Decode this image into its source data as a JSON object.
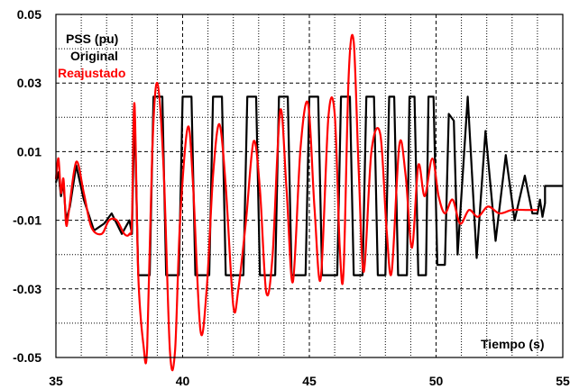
{
  "chart_data": {
    "type": "line",
    "title": "",
    "xlabel": "Tiempo (s)",
    "ylabel": "PSS (pu)",
    "xlim": [
      35,
      55
    ],
    "ylim": [
      -0.05,
      0.05
    ],
    "x_ticks": [
      "35",
      "40",
      "45",
      "50",
      "55"
    ],
    "y_ticks": [
      "0.05",
      "0.03",
      "0.01",
      "-0.01",
      "-0.03",
      "-0.05"
    ],
    "grid": {
      "major": "dashed",
      "minor": "dotted"
    },
    "legend": "top-left",
    "series": [
      {
        "name": "Original",
        "color": "#000000",
        "points": [
          [
            35.0,
            0.001
          ],
          [
            35.1,
            0.004
          ],
          [
            35.2,
            -0.003
          ],
          [
            35.3,
            0.001
          ],
          [
            35.4,
            -0.01
          ],
          [
            35.55,
            -0.006
          ],
          [
            35.8,
            0.006
          ],
          [
            36.1,
            -0.004
          ],
          [
            36.5,
            -0.013
          ],
          [
            36.9,
            -0.011
          ],
          [
            37.2,
            -0.008
          ],
          [
            37.6,
            -0.014
          ],
          [
            37.9,
            -0.01
          ],
          [
            38.0,
            -0.014
          ],
          [
            38.1,
            0.023
          ],
          [
            38.25,
            -0.026
          ],
          [
            38.7,
            -0.026
          ],
          [
            38.85,
            0.026
          ],
          [
            39.2,
            0.026
          ],
          [
            39.35,
            -0.026
          ],
          [
            39.85,
            -0.026
          ],
          [
            40.0,
            0.026
          ],
          [
            40.35,
            0.026
          ],
          [
            40.5,
            -0.026
          ],
          [
            41.05,
            -0.026
          ],
          [
            41.2,
            0.026
          ],
          [
            41.55,
            0.026
          ],
          [
            41.7,
            -0.026
          ],
          [
            42.4,
            -0.026
          ],
          [
            42.55,
            0.026
          ],
          [
            42.9,
            0.026
          ],
          [
            43.05,
            -0.026
          ],
          [
            43.65,
            -0.026
          ],
          [
            43.8,
            0.026
          ],
          [
            44.15,
            0.026
          ],
          [
            44.3,
            -0.026
          ],
          [
            44.85,
            -0.026
          ],
          [
            45.0,
            0.026
          ],
          [
            45.35,
            0.026
          ],
          [
            45.5,
            -0.026
          ],
          [
            46.1,
            -0.026
          ],
          [
            46.25,
            0.026
          ],
          [
            46.6,
            0.026
          ],
          [
            46.75,
            -0.026
          ],
          [
            47.1,
            -0.026
          ],
          [
            47.25,
            0.026
          ],
          [
            47.55,
            0.026
          ],
          [
            47.7,
            -0.026
          ],
          [
            48.0,
            -0.026
          ],
          [
            48.15,
            0.026
          ],
          [
            48.35,
            0.026
          ],
          [
            48.5,
            -0.026
          ],
          [
            48.85,
            -0.026
          ],
          [
            48.95,
            0.026
          ],
          [
            49.15,
            0.026
          ],
          [
            49.3,
            -0.026
          ],
          [
            49.6,
            -0.026
          ],
          [
            49.7,
            0.026
          ],
          [
            49.9,
            0.026
          ],
          [
            50.05,
            -0.023
          ],
          [
            50.35,
            -0.023
          ],
          [
            50.5,
            0.021
          ],
          [
            50.7,
            0.019
          ],
          [
            50.85,
            -0.02
          ],
          [
            51.25,
            0.026
          ],
          [
            51.6,
            -0.021
          ],
          [
            51.95,
            0.016
          ],
          [
            52.35,
            -0.016
          ],
          [
            52.75,
            0.009
          ],
          [
            53.1,
            -0.01
          ],
          [
            53.5,
            0.003
          ],
          [
            53.8,
            -0.008
          ],
          [
            54.0,
            -0.008
          ],
          [
            54.1,
            -0.004
          ],
          [
            54.2,
            -0.009
          ],
          [
            54.3,
            -0.005
          ],
          [
            54.3,
            0.0
          ],
          [
            55.0,
            0.0
          ]
        ]
      },
      {
        "name": "Reajustado",
        "color": "#ff0000",
        "points": [
          [
            35.0,
            0.002
          ],
          [
            35.1,
            0.008
          ],
          [
            35.2,
            -0.002
          ],
          [
            35.3,
            0.002
          ],
          [
            35.4,
            -0.011
          ],
          [
            35.5,
            -0.008
          ],
          [
            35.8,
            0.007
          ],
          [
            36.1,
            -0.002
          ],
          [
            36.4,
            -0.012
          ],
          [
            36.8,
            -0.014
          ],
          [
            37.1,
            -0.01
          ],
          [
            37.4,
            -0.01
          ],
          [
            37.7,
            -0.014
          ],
          [
            37.9,
            -0.014
          ],
          [
            38.0,
            -0.01
          ],
          [
            38.1,
            0.024
          ],
          [
            38.25,
            -0.026
          ],
          [
            38.45,
            -0.046
          ],
          [
            38.6,
            -0.047
          ],
          [
            38.8,
            0.01
          ],
          [
            39.0,
            0.03
          ],
          [
            39.25,
            0.005
          ],
          [
            39.5,
            -0.048
          ],
          [
            39.7,
            -0.048
          ],
          [
            39.9,
            -0.01
          ],
          [
            40.2,
            0.017
          ],
          [
            40.4,
            0.002
          ],
          [
            40.7,
            -0.042
          ],
          [
            40.95,
            -0.03
          ],
          [
            41.2,
            0.003
          ],
          [
            41.45,
            0.018
          ],
          [
            41.7,
            0.0
          ],
          [
            42.0,
            -0.035
          ],
          [
            42.2,
            -0.03
          ],
          [
            42.5,
            -0.01
          ],
          [
            42.8,
            0.013
          ],
          [
            43.05,
            -0.001
          ],
          [
            43.3,
            -0.031
          ],
          [
            43.55,
            -0.02
          ],
          [
            43.85,
            0.022
          ],
          [
            44.1,
            -0.001
          ],
          [
            44.35,
            -0.028
          ],
          [
            44.65,
            0.011
          ],
          [
            44.95,
            0.024
          ],
          [
            45.2,
            -0.006
          ],
          [
            45.45,
            -0.027
          ],
          [
            45.75,
            0.02
          ],
          [
            46.0,
            0.021
          ],
          [
            46.2,
            -0.018
          ],
          [
            46.35,
            -0.025
          ],
          [
            46.55,
            0.032
          ],
          [
            46.75,
            0.042
          ],
          [
            46.95,
            0.004
          ],
          [
            47.15,
            -0.025
          ],
          [
            47.45,
            0.01
          ],
          [
            47.8,
            0.015
          ],
          [
            48.05,
            -0.013
          ],
          [
            48.25,
            -0.025
          ],
          [
            48.55,
            0.012
          ],
          [
            48.8,
            0.003
          ],
          [
            49.05,
            -0.018
          ],
          [
            49.3,
            0.006
          ],
          [
            49.55,
            -0.003
          ],
          [
            49.85,
            0.008
          ],
          [
            50.1,
            -0.003
          ],
          [
            50.35,
            -0.008
          ],
          [
            50.65,
            -0.004
          ],
          [
            50.95,
            -0.011
          ],
          [
            51.3,
            -0.007
          ],
          [
            51.65,
            -0.009
          ],
          [
            52.05,
            -0.006
          ],
          [
            52.5,
            -0.008
          ],
          [
            53.0,
            -0.007
          ],
          [
            53.6,
            -0.007
          ],
          [
            54.0,
            -0.007
          ]
        ]
      }
    ]
  }
}
